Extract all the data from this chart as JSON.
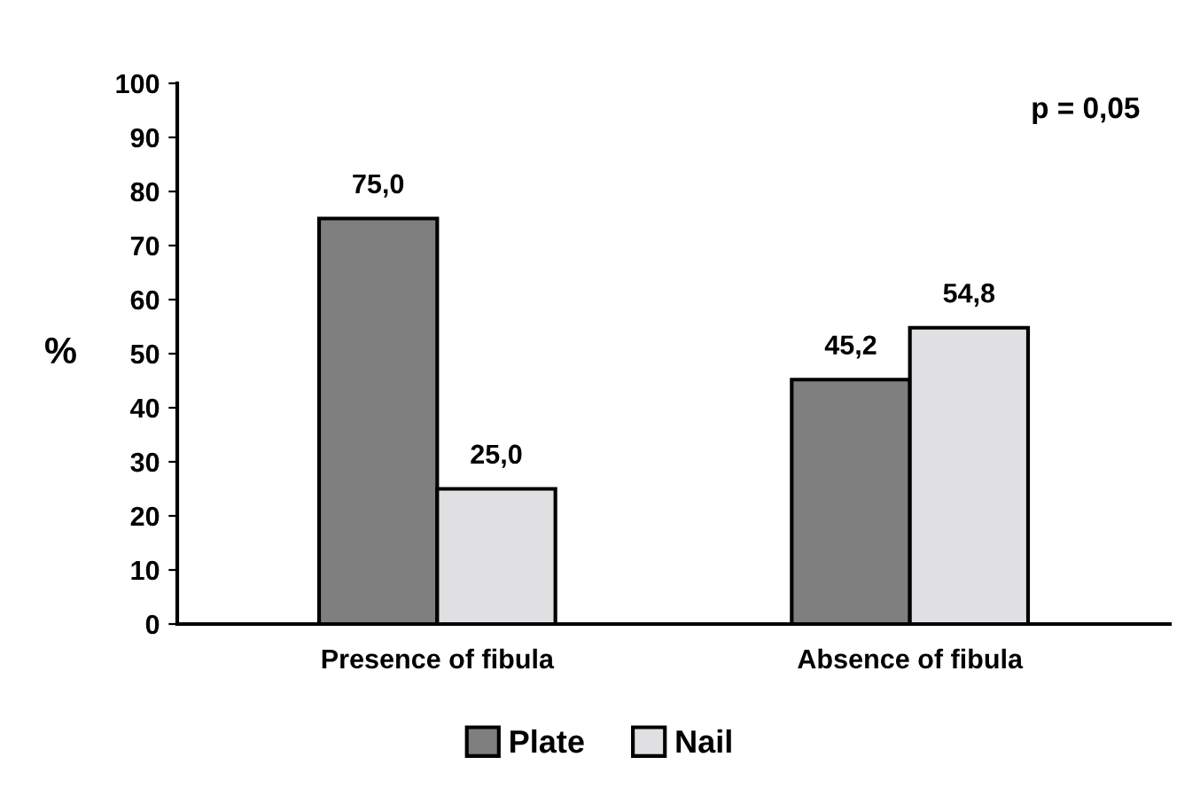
{
  "chart_data": {
    "type": "bar",
    "ylabel": "%",
    "categories": [
      "Presence of fibula",
      "Absence of fibula"
    ],
    "series": [
      {
        "name": "Plate",
        "color": "#7f7f80",
        "values": [
          75.0,
          45.2
        ],
        "value_labels": [
          "75,0",
          "45,2"
        ]
      },
      {
        "name": "Nail",
        "color": "#e0e0e2",
        "values": [
          25.0,
          54.8
        ],
        "value_labels": [
          "25,0",
          "54,8"
        ]
      }
    ],
    "ylim": [
      0,
      100
    ],
    "yticks": [
      0,
      10,
      20,
      30,
      40,
      50,
      60,
      70,
      80,
      90,
      100
    ],
    "grid": false,
    "legend": "bottom",
    "annotations": [
      "p = 0,05"
    ]
  }
}
